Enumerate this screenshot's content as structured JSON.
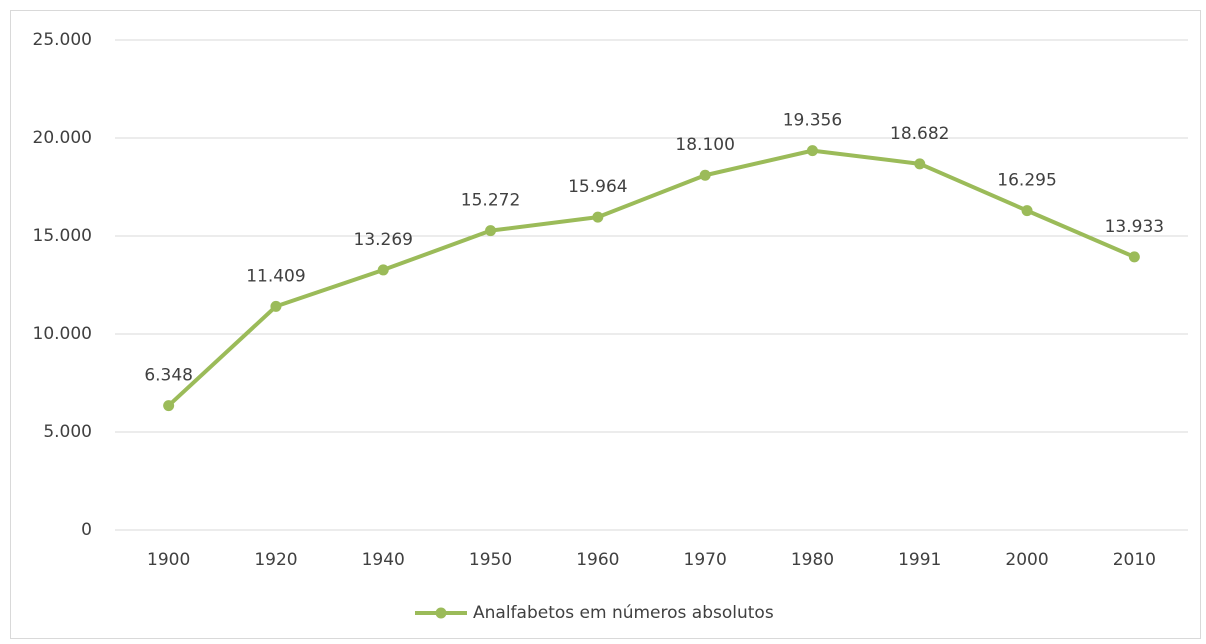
{
  "chart_data": {
    "type": "line",
    "categories": [
      "1900",
      "1920",
      "1940",
      "1950",
      "1960",
      "1970",
      "1980",
      "1991",
      "2000",
      "2010"
    ],
    "series": [
      {
        "name": "Analfabetos em números absolutos",
        "color": "#9bbb59",
        "values": [
          6348,
          11409,
          13269,
          15272,
          15964,
          18100,
          19356,
          18682,
          16295,
          13933
        ],
        "value_labels": [
          "6.348",
          "11.409",
          "13.269",
          "15.272",
          "15.964",
          "18.100",
          "19.356",
          "18.682",
          "16.295",
          "13.933"
        ]
      }
    ],
    "ylim": [
      0,
      25000
    ],
    "yticks": [
      0,
      {
        "value": 5000,
        "label": "5.000"
      },
      {
        "value": 10000,
        "label": "10.000"
      },
      {
        "value": 15000,
        "label": "15.000"
      },
      {
        "value": 20000,
        "label": "20.000"
      },
      {
        "value": 25000,
        "label": "25.000"
      }
    ],
    "grid": true,
    "legend": "bottom"
  }
}
